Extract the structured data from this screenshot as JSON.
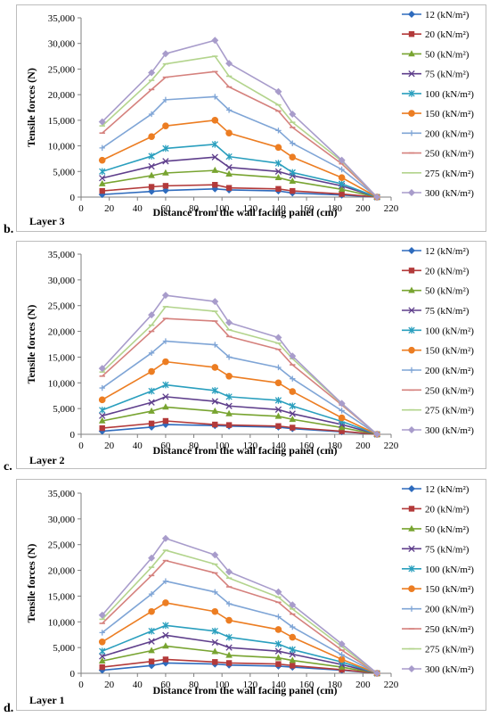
{
  "figure": {
    "panel_labels": [
      "b.",
      "c.",
      "d."
    ]
  },
  "legend_entries": [
    "12 (kN/m²)",
    "20 (kN/m²)",
    "50 (kN/m²)",
    "75 (kN/m²)",
    "100 (kN/m²)",
    "150 (kN/m²)",
    "200 (kN/m²)",
    "250 (kN/m²)",
    "275 (kN/m²)",
    "300 (kN/m²)"
  ],
  "series_style": [
    {
      "color": "#2e6bbd",
      "marker": "diamond"
    },
    {
      "color": "#b33a3a",
      "marker": "square"
    },
    {
      "color": "#78a431",
      "marker": "triangle"
    },
    {
      "color": "#5f3f8c",
      "marker": "x"
    },
    {
      "color": "#2a9fbe",
      "marker": "star"
    },
    {
      "color": "#ec7d22",
      "marker": "circle"
    },
    {
      "color": "#7fa5d6",
      "marker": "plus"
    },
    {
      "color": "#d5817d",
      "marker": "dash"
    },
    {
      "color": "#b3d48d",
      "marker": "dash"
    },
    {
      "color": "#a89ccb",
      "marker": "diamond"
    }
  ],
  "chart_data": [
    {
      "type": "line",
      "panel": "b.",
      "annotation": "Layer 3",
      "xlabel": "Distance from the wall facing panel (cm)",
      "ylabel": "Tensile forces (N)",
      "xlim": [
        0,
        220
      ],
      "ylim": [
        0,
        35000
      ],
      "xticks": [
        "0",
        "20",
        "40",
        "60",
        "80",
        "100",
        "120",
        "140",
        "160",
        "180",
        "200",
        "220"
      ],
      "yticks": [
        "0",
        "5,000",
        "10,000",
        "15,000",
        "20,000",
        "25,000",
        "30,000",
        "35,000"
      ],
      "x": [
        15,
        50,
        60,
        95,
        105,
        140,
        150,
        185,
        210
      ],
      "series": [
        {
          "name": "12 (kN/m²)",
          "values": [
            500,
            1100,
            1300,
            1600,
            1400,
            1200,
            800,
            400,
            0
          ]
        },
        {
          "name": "20 (kN/m²)",
          "values": [
            1200,
            2000,
            2200,
            2400,
            1800,
            1600,
            1200,
            600,
            0
          ]
        },
        {
          "name": "50 (kN/m²)",
          "values": [
            2600,
            4200,
            4700,
            5200,
            4500,
            3800,
            3100,
            1500,
            0
          ]
        },
        {
          "name": "75 (kN/m²)",
          "values": [
            3700,
            6000,
            7000,
            7800,
            5800,
            5000,
            4200,
            2200,
            0
          ]
        },
        {
          "name": "100 (kN/m²)",
          "values": [
            5000,
            8000,
            9500,
            10300,
            7900,
            6600,
            4800,
            2600,
            0
          ]
        },
        {
          "name": "150 (kN/m²)",
          "values": [
            7200,
            11800,
            13900,
            15000,
            12500,
            9700,
            7800,
            3800,
            0
          ]
        },
        {
          "name": "200 (kN/m²)",
          "values": [
            9600,
            16200,
            19000,
            19600,
            17000,
            13000,
            10500,
            5400,
            0
          ]
        },
        {
          "name": "250 (kN/m²)",
          "values": [
            12500,
            21000,
            23400,
            24500,
            21500,
            16800,
            13600,
            6500,
            0
          ]
        },
        {
          "name": "275 (kN/m²)",
          "values": [
            13900,
            22800,
            26000,
            27500,
            23600,
            18000,
            14600,
            7000,
            0
          ]
        },
        {
          "name": "300 (kN/m²)",
          "values": [
            14700,
            24300,
            28000,
            30600,
            26100,
            20600,
            16200,
            7200,
            0
          ]
        }
      ]
    },
    {
      "type": "line",
      "panel": "c.",
      "annotation": "Layer 2",
      "xlabel": "Distance from the wall facing panel (cm)",
      "ylabel": "Tensile forces (N)",
      "xlim": [
        0,
        220
      ],
      "ylim": [
        0,
        35000
      ],
      "xticks": [
        "0",
        "20",
        "40",
        "60",
        "80",
        "100",
        "120",
        "140",
        "160",
        "180",
        "200",
        "220"
      ],
      "yticks": [
        "0",
        "5,000",
        "10,000",
        "15,000",
        "20,000",
        "25,000",
        "30,000",
        "35,000"
      ],
      "x": [
        15,
        50,
        60,
        95,
        105,
        140,
        150,
        185,
        210
      ],
      "series": [
        {
          "name": "12 (kN/m²)",
          "values": [
            600,
            1400,
            1900,
            1700,
            1600,
            1400,
            1100,
            500,
            0
          ]
        },
        {
          "name": "20 (kN/m²)",
          "values": [
            1200,
            2100,
            2600,
            1900,
            1800,
            1600,
            1300,
            600,
            0
          ]
        },
        {
          "name": "50 (kN/m²)",
          "values": [
            2600,
            4500,
            5300,
            4500,
            4000,
            3500,
            2900,
            1300,
            0
          ]
        },
        {
          "name": "75 (kN/m²)",
          "values": [
            3600,
            6200,
            7300,
            6400,
            5500,
            4800,
            4000,
            1900,
            0
          ]
        },
        {
          "name": "100 (kN/m²)",
          "values": [
            4700,
            8400,
            9600,
            8500,
            7300,
            6600,
            5500,
            2500,
            0
          ]
        },
        {
          "name": "150 (kN/m²)",
          "values": [
            6700,
            12200,
            14100,
            13000,
            11300,
            10000,
            8300,
            3200,
            0
          ]
        },
        {
          "name": "200 (kN/m²)",
          "values": [
            9000,
            15800,
            18100,
            17400,
            15000,
            13000,
            10800,
            4600,
            0
          ]
        },
        {
          "name": "250 (kN/m²)",
          "values": [
            11300,
            20000,
            22500,
            22000,
            19000,
            16500,
            13500,
            5700,
            0
          ]
        },
        {
          "name": "275 (kN/m²)",
          "values": [
            12100,
            21200,
            24800,
            23900,
            20300,
            17700,
            14700,
            5900,
            0
          ]
        },
        {
          "name": "300 (kN/m²)",
          "values": [
            12800,
            23200,
            27000,
            25800,
            21700,
            18800,
            15200,
            6000,
            0
          ]
        }
      ]
    },
    {
      "type": "line",
      "panel": "d.",
      "annotation": "Layer 1",
      "xlabel": "Distance from the wall facing panel (cm)",
      "ylabel": "Tensile forces (N)",
      "xlim": [
        0,
        220
      ],
      "ylim": [
        0,
        35000
      ],
      "xticks": [
        "0",
        "20",
        "40",
        "60",
        "80",
        "100",
        "120",
        "140",
        "160",
        "180",
        "200",
        "220"
      ],
      "yticks": [
        "0",
        "5,000",
        "10,000",
        "15,000",
        "20,000",
        "25,000",
        "30,000",
        "35,000"
      ],
      "x": [
        15,
        50,
        60,
        95,
        105,
        140,
        150,
        185,
        210
      ],
      "series": [
        {
          "name": "12 (kN/m²)",
          "values": [
            600,
            1500,
            2000,
            1800,
            1600,
            1400,
            1200,
            600,
            0
          ]
        },
        {
          "name": "20 (kN/m²)",
          "values": [
            1200,
            2300,
            2700,
            2200,
            2000,
            1800,
            1500,
            700,
            0
          ]
        },
        {
          "name": "50 (kN/m²)",
          "values": [
            2400,
            4400,
            5300,
            4200,
            3500,
            3000,
            2500,
            1200,
            0
          ]
        },
        {
          "name": "75 (kN/m²)",
          "values": [
            3300,
            6200,
            7400,
            6000,
            5000,
            4300,
            3700,
            1700,
            0
          ]
        },
        {
          "name": "100 (kN/m²)",
          "values": [
            4300,
            8200,
            9300,
            8200,
            7000,
            5700,
            4600,
            2200,
            0
          ]
        },
        {
          "name": "150 (kN/m²)",
          "values": [
            6100,
            12000,
            13700,
            12000,
            10300,
            8500,
            7000,
            2700,
            0
          ]
        },
        {
          "name": "200 (kN/m²)",
          "values": [
            7900,
            15400,
            17900,
            15800,
            13500,
            11000,
            9000,
            3600,
            0
          ]
        },
        {
          "name": "250 (kN/m²)",
          "values": [
            9700,
            19000,
            21900,
            19500,
            16800,
            13800,
            11500,
            4500,
            0
          ]
        },
        {
          "name": "275 (kN/m²)",
          "values": [
            10500,
            20600,
            23900,
            21200,
            18500,
            14800,
            12500,
            5200,
            0
          ]
        },
        {
          "name": "300 (kN/m²)",
          "values": [
            11300,
            22400,
            26200,
            23000,
            19700,
            15800,
            13300,
            5700,
            0
          ]
        }
      ]
    }
  ]
}
